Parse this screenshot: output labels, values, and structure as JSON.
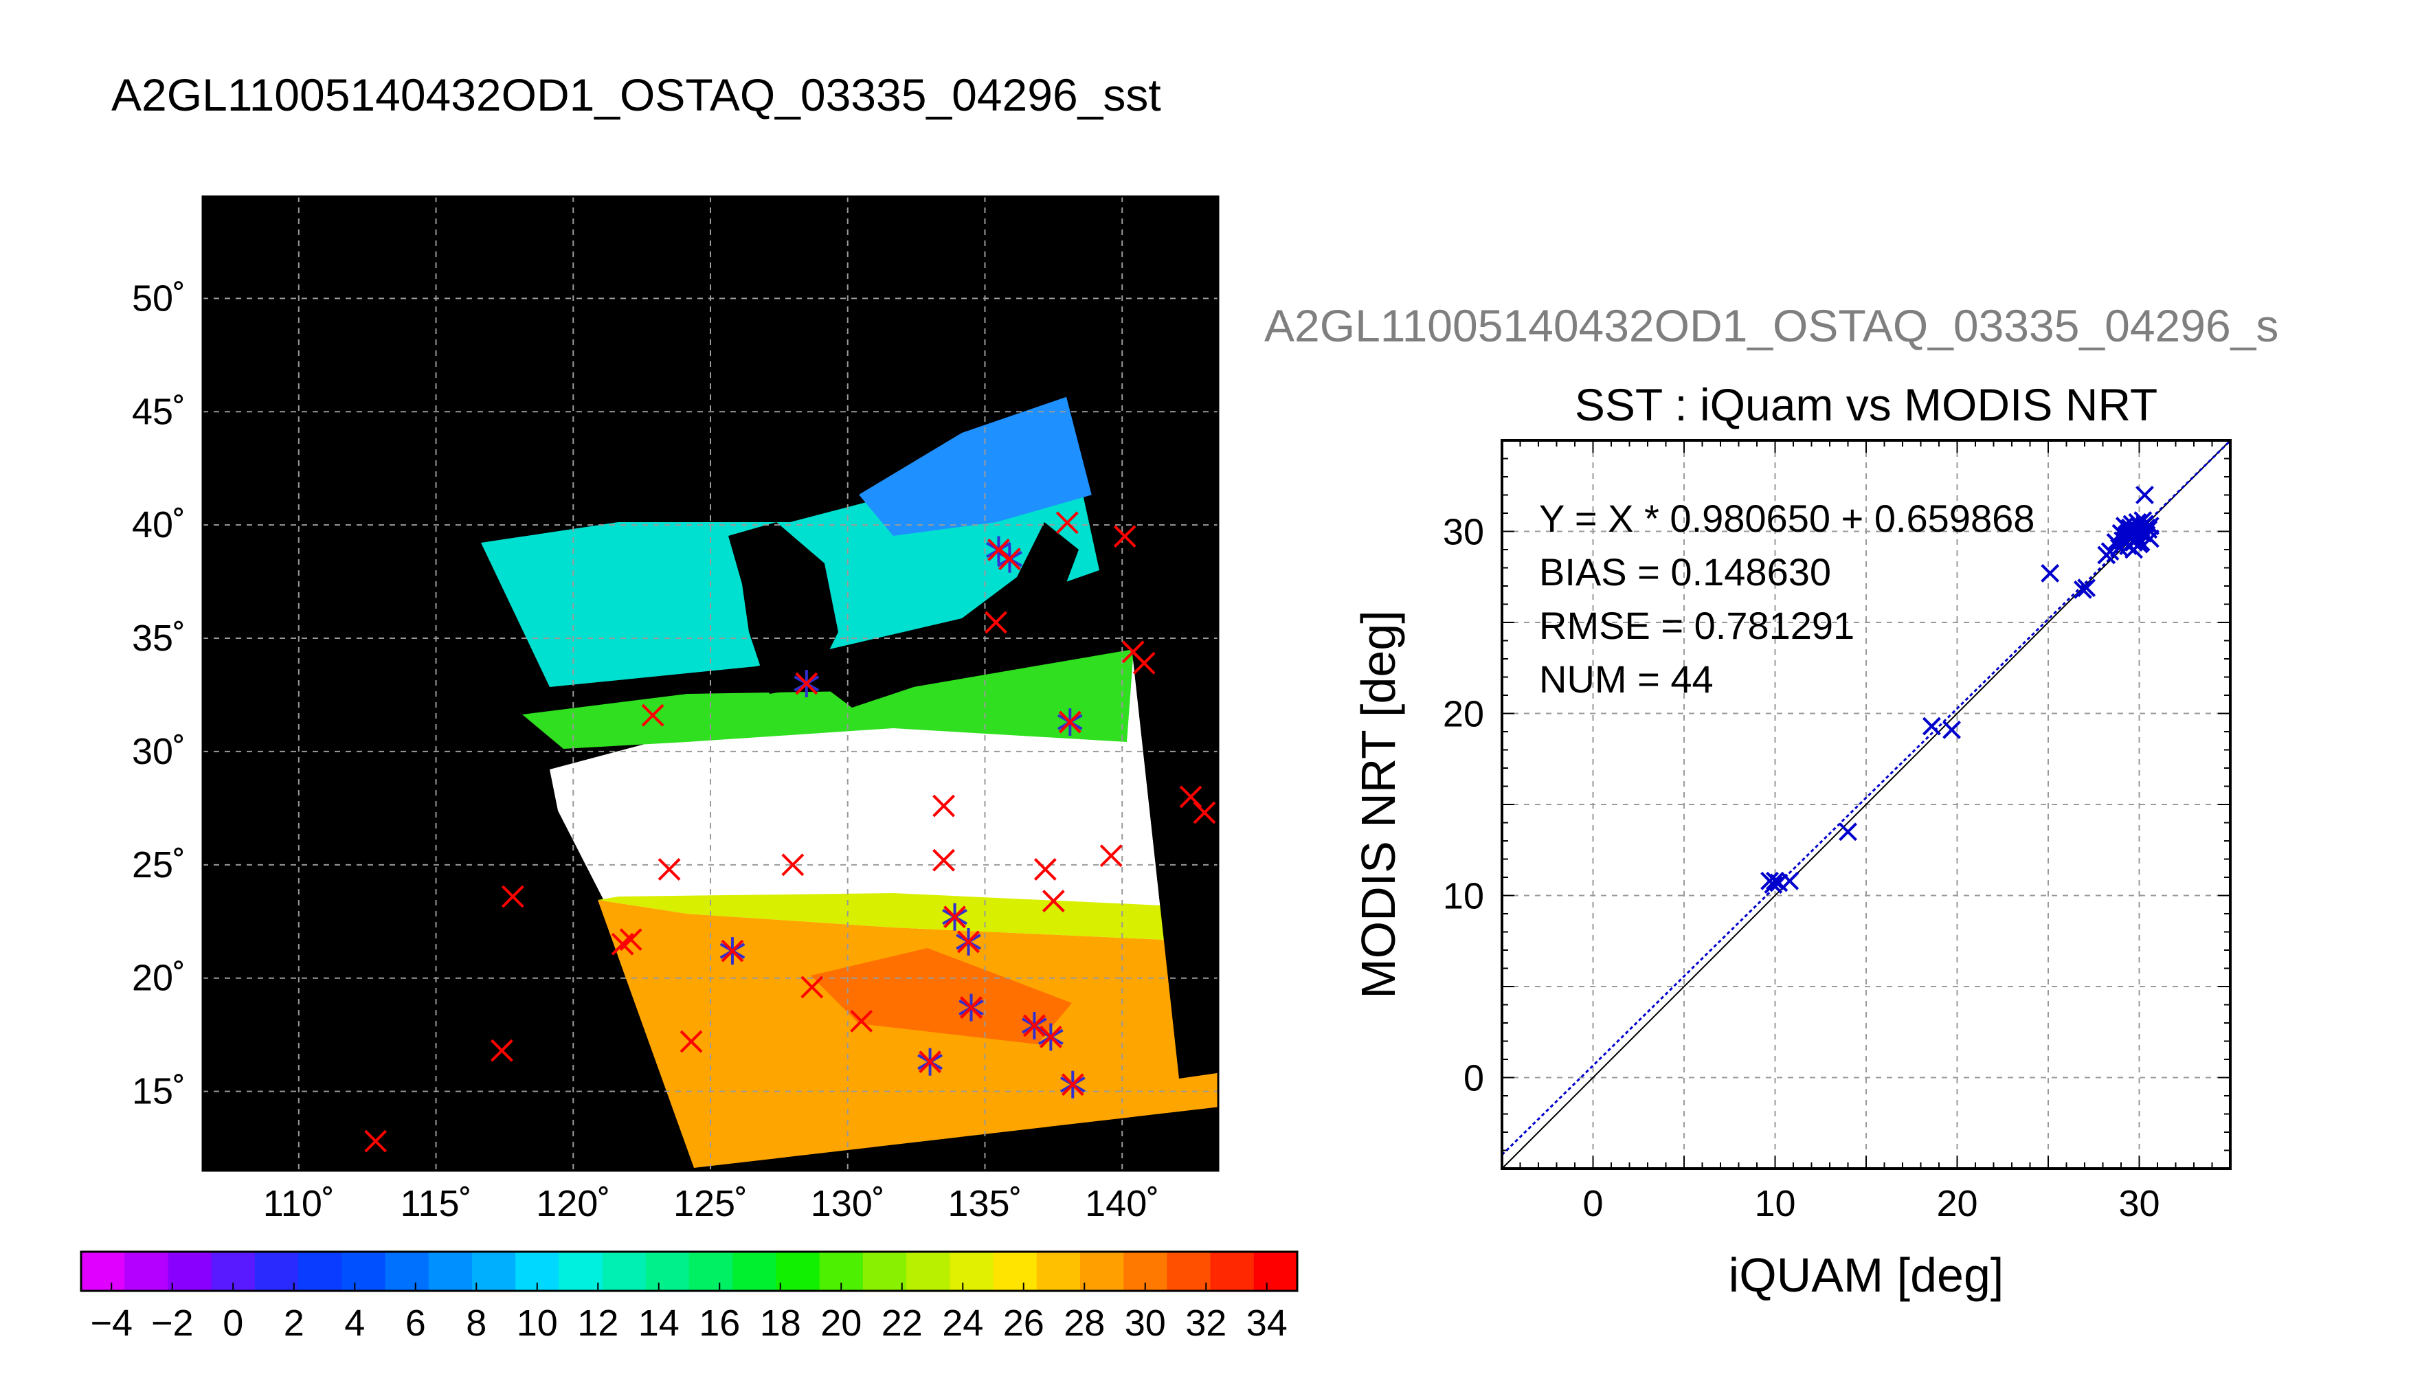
{
  "main_title": "A2GL11005140432OD1_OSTAQ_03335_04296_sst",
  "chart_data": [
    {
      "type": "map",
      "title": "",
      "xlabel": "",
      "ylabel": "",
      "xlim": [
        106.5,
        143.5
      ],
      "ylim": [
        11.5,
        54.5
      ],
      "x_ticks": [
        110,
        115,
        120,
        125,
        130,
        135,
        140
      ],
      "x_tick_labels": [
        "110˚",
        "115˚",
        "120˚",
        "125˚",
        "130˚",
        "135˚",
        "140˚"
      ],
      "y_ticks": [
        15,
        20,
        25,
        30,
        35,
        40,
        45,
        50
      ],
      "y_tick_labels": [
        "15˚",
        "20˚",
        "25˚",
        "30˚",
        "35˚",
        "40˚",
        "45˚",
        "50˚"
      ],
      "grid": true,
      "colorbar": {
        "min": -5,
        "max": 35,
        "tick_values": [
          -4,
          -2,
          0,
          2,
          4,
          6,
          8,
          10,
          12,
          14,
          16,
          18,
          20,
          22,
          24,
          26,
          28,
          30,
          32,
          34
        ],
        "tick_labels": [
          "−4",
          "−2",
          "0",
          "2",
          "4",
          "6",
          "8",
          "10",
          "12",
          "14",
          "16",
          "18",
          "20",
          "22",
          "24",
          "26",
          "28",
          "30",
          "32",
          "34"
        ],
        "colors": [
          "#e000ff",
          "#b400ff",
          "#8a00ff",
          "#5a1aff",
          "#2a2aff",
          "#0a3cff",
          "#0050ff",
          "#0070ff",
          "#0090ff",
          "#00b0ff",
          "#00d8ff",
          "#00f0e0",
          "#00f0b4",
          "#00f08c",
          "#00f064",
          "#00f030",
          "#10f000",
          "#4cf000",
          "#88f000",
          "#b8f000",
          "#e0f000",
          "#ffe400",
          "#ffc000",
          "#ffa000",
          "#ff7800",
          "#ff5000",
          "#ff2800",
          "#ff0000"
        ]
      },
      "series": [
        {
          "marker": "x",
          "color": "#ff0000",
          "points": [
            [
              112.8,
              12.8
            ],
            [
              117.4,
              16.8
            ],
            [
              117.8,
              23.6
            ],
            [
              121.8,
              21.5
            ],
            [
              122.1,
              21.7
            ],
            [
              122.9,
              31.6
            ],
            [
              123.5,
              24.8
            ],
            [
              124.3,
              17.2
            ],
            [
              125.8,
              21.2
            ],
            [
              128,
              25
            ],
            [
              128.5,
              33
            ],
            [
              128.7,
              19.6
            ],
            [
              130.5,
              18.1
            ],
            [
              133,
              16.3
            ],
            [
              133.5,
              27.6
            ],
            [
              133.5,
              25.2
            ],
            [
              133.9,
              22.7
            ],
            [
              134.4,
              21.6
            ],
            [
              134.5,
              18.7
            ],
            [
              135.4,
              35.7
            ],
            [
              135.5,
              38.9
            ],
            [
              135.9,
              38.5
            ],
            [
              136.8,
              17.9
            ],
            [
              137.2,
              24.8
            ],
            [
              137.4,
              17.4
            ],
            [
              137.5,
              23.4
            ],
            [
              138,
              40.1
            ],
            [
              138.1,
              31.3
            ],
            [
              138.2,
              15.3
            ],
            [
              139.6,
              25.4
            ],
            [
              140.1,
              39.5
            ],
            [
              140.4,
              34.4
            ],
            [
              140.8,
              33.9
            ],
            [
              142.5,
              28
            ],
            [
              143,
              27.3
            ]
          ]
        },
        {
          "marker": "asterisk",
          "color": "#3030d0",
          "points": [
            [
              125.8,
              21.2
            ],
            [
              128.5,
              33
            ],
            [
              133,
              16.3
            ],
            [
              133.9,
              22.7
            ],
            [
              134.4,
              21.6
            ],
            [
              134.5,
              18.7
            ],
            [
              135.5,
              38.9
            ],
            [
              135.9,
              38.5
            ],
            [
              136.8,
              17.9
            ],
            [
              137.4,
              17.4
            ],
            [
              138.1,
              31.3
            ],
            [
              138.2,
              15.3
            ]
          ]
        }
      ]
    },
    {
      "type": "scatter",
      "subtitle": "A2GL11005140432OD1_OSTAQ_03335_04296_s",
      "title": "SST : iQuam vs MODIS NRT",
      "xlabel": "iQUAM [deg]",
      "ylabel": "MODIS NRT [deg]",
      "xlim": [
        -5,
        35
      ],
      "ylim": [
        -5,
        35
      ],
      "x_ticks": [
        0,
        10,
        20,
        30
      ],
      "x_tick_labels": [
        "0",
        "10",
        "20",
        "30"
      ],
      "y_ticks": [
        0,
        10,
        20,
        30
      ],
      "y_tick_labels": [
        "0",
        "10",
        "20",
        "30"
      ],
      "grid": true,
      "annotations": [
        "Y = X * 0.980650 + 0.659868",
        "BIAS = 0.148630",
        "RMSE = 0.781291",
        "NUM = 44"
      ],
      "fit_line": {
        "slope": 0.98065,
        "intercept": 0.659868,
        "color": "#0000cc"
      },
      "identity_line": {
        "slope": 1,
        "intercept": 0,
        "color": "#000000"
      },
      "marker": "x",
      "marker_color": "#0000cc",
      "points": [
        [
          9.7,
          10.8
        ],
        [
          9.9,
          10.6
        ],
        [
          10.0,
          10.8
        ],
        [
          10.2,
          10.7
        ],
        [
          10.8,
          10.8
        ],
        [
          14.0,
          13.5
        ],
        [
          18.6,
          19.3
        ],
        [
          19.7,
          19.1
        ],
        [
          25.1,
          27.7
        ],
        [
          26.9,
          26.8
        ],
        [
          27.1,
          26.9
        ],
        [
          28.2,
          28.7
        ],
        [
          28.4,
          28.9
        ],
        [
          28.9,
          29.1
        ],
        [
          29.1,
          29.5
        ],
        [
          29.3,
          29.8
        ],
        [
          29.4,
          29.2
        ],
        [
          29.5,
          29.6
        ],
        [
          29.6,
          30.0
        ],
        [
          29.7,
          29.4
        ],
        [
          29.8,
          30.1
        ],
        [
          29.9,
          29.7
        ],
        [
          30.0,
          29.3
        ],
        [
          30.1,
          30.2
        ],
        [
          30.2,
          29.9
        ],
        [
          30.3,
          32.0
        ],
        [
          30.4,
          29.8
        ],
        [
          30.5,
          30.1
        ],
        [
          30.6,
          29.6
        ],
        [
          29.2,
          30.3
        ],
        [
          29.6,
          30.4
        ],
        [
          29.9,
          30.5
        ],
        [
          30.2,
          30.6
        ],
        [
          30.0,
          30.0
        ],
        [
          29.4,
          29.9
        ],
        [
          29.7,
          29.0
        ],
        [
          30.1,
          29.4
        ],
        [
          30.3,
          30.4
        ],
        [
          29.8,
          29.5
        ],
        [
          30.4,
          30.2
        ],
        [
          28.7,
          29.4
        ],
        [
          29.0,
          29.9
        ],
        [
          30.6,
          30.3
        ],
        [
          29.5,
          30.2
        ]
      ]
    }
  ]
}
